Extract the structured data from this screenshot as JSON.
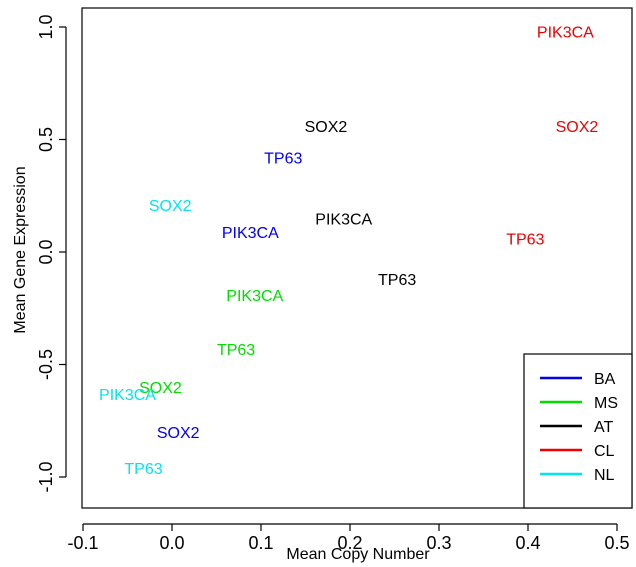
{
  "chart_data": {
    "type": "scatter",
    "xlabel": "Mean Copy Number",
    "ylabel": "Mean Gene Expression",
    "xlim": [
      -0.1,
      0.5
    ],
    "ylim": [
      -1.0,
      1.0
    ],
    "x_ticks": [
      "-0.1",
      "0.0",
      "0.1",
      "0.2",
      "0.3",
      "0.4",
      "0.5"
    ],
    "y_ticks": [
      "-1.0",
      "-0.5",
      "0.0",
      "0.5",
      "1.0"
    ],
    "legend_position": "bottom-right",
    "legend": [
      {
        "name": "BA",
        "color": "#0000ee"
      },
      {
        "name": "MS",
        "color": "#00dd00"
      },
      {
        "name": "AT",
        "color": "#000000"
      },
      {
        "name": "CL",
        "color": "#ee0000"
      },
      {
        "name": "NL",
        "color": "#00e5ee"
      }
    ],
    "series": [
      {
        "name": "BA",
        "color": "#0000ee",
        "points": [
          {
            "label": "TP63",
            "x": 0.125,
            "y": 0.42
          },
          {
            "label": "PIK3CA",
            "x": 0.088,
            "y": 0.09
          },
          {
            "label": "SOX2",
            "x": 0.007,
            "y": -0.8
          }
        ]
      },
      {
        "name": "MS",
        "color": "#00dd00",
        "points": [
          {
            "label": "PIK3CA",
            "x": 0.093,
            "y": -0.19
          },
          {
            "label": "TP63",
            "x": 0.072,
            "y": -0.43
          },
          {
            "label": "SOX2",
            "x": -0.013,
            "y": -0.6
          }
        ]
      },
      {
        "name": "AT",
        "color": "#000000",
        "points": [
          {
            "label": "SOX2",
            "x": 0.173,
            "y": 0.56
          },
          {
            "label": "PIK3CA",
            "x": 0.193,
            "y": 0.15
          },
          {
            "label": "TP63",
            "x": 0.253,
            "y": -0.12
          }
        ]
      },
      {
        "name": "CL",
        "color": "#ee0000",
        "points": [
          {
            "label": "PIK3CA",
            "x": 0.442,
            "y": 0.98
          },
          {
            "label": "SOX2",
            "x": 0.455,
            "y": 0.56
          },
          {
            "label": "TP63",
            "x": 0.397,
            "y": 0.06
          }
        ]
      },
      {
        "name": "NL",
        "color": "#00e5ee",
        "points": [
          {
            "label": "SOX2",
            "x": -0.002,
            "y": 0.21
          },
          {
            "label": "PIK3CA",
            "x": -0.05,
            "y": -0.63
          },
          {
            "label": "TP63",
            "x": -0.032,
            "y": -0.96
          }
        ]
      }
    ]
  }
}
